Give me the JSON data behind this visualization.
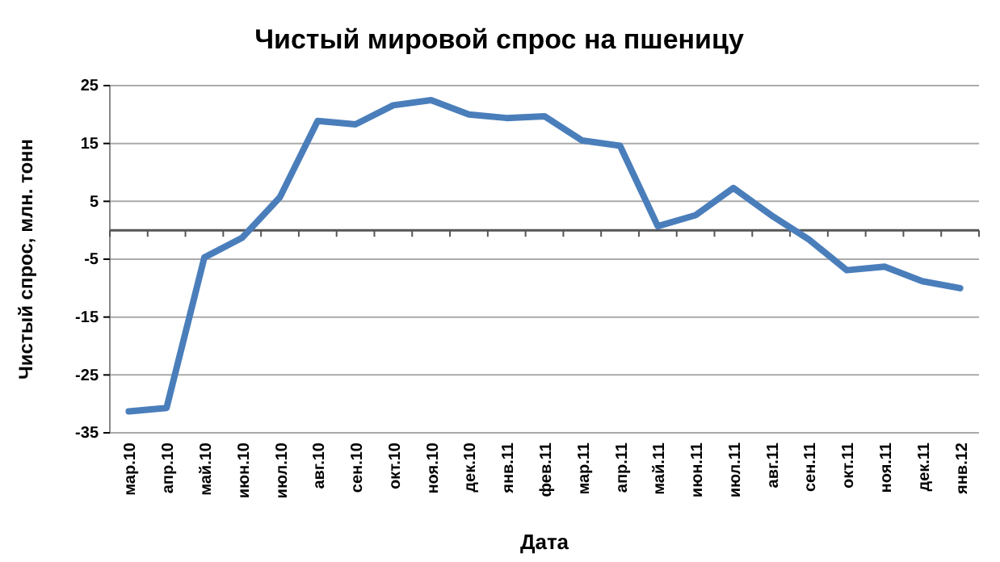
{
  "chart_data": {
    "type": "line",
    "title": "Чистый мировой спрос на пшеницу",
    "xlabel": "Дата",
    "ylabel": "Чистый спрос, млн. тонн",
    "categories": [
      "мар.10",
      "апр.10",
      "май.10",
      "июн.10",
      "июл.10",
      "авг.10",
      "сен.10",
      "окт.10",
      "ноя.10",
      "дек.10",
      "янв.11",
      "фев.11",
      "мар.11",
      "апр.11",
      "май.11",
      "июн.11",
      "июл.11",
      "авг.11",
      "сен.11",
      "окт.11",
      "ноя.11",
      "дек.11",
      "янв.12"
    ],
    "series": [
      {
        "color": "#4a7ebb",
        "values": [
          -31.3,
          -30.7,
          -4.7,
          -1.3,
          5.7,
          18.9,
          18.3,
          21.6,
          22.5,
          20,
          19.4,
          19.7,
          15.5,
          14.6,
          0.7,
          2.6,
          7.3,
          2.6,
          -1.6,
          -6.9,
          -6.3,
          -8.8,
          -10
        ]
      }
    ],
    "ylim": [
      -35,
      25
    ],
    "yticks": [
      -35,
      -25,
      -15,
      -5,
      5,
      15,
      25
    ],
    "grid": "y",
    "marker": "none",
    "line_style": "solid"
  }
}
